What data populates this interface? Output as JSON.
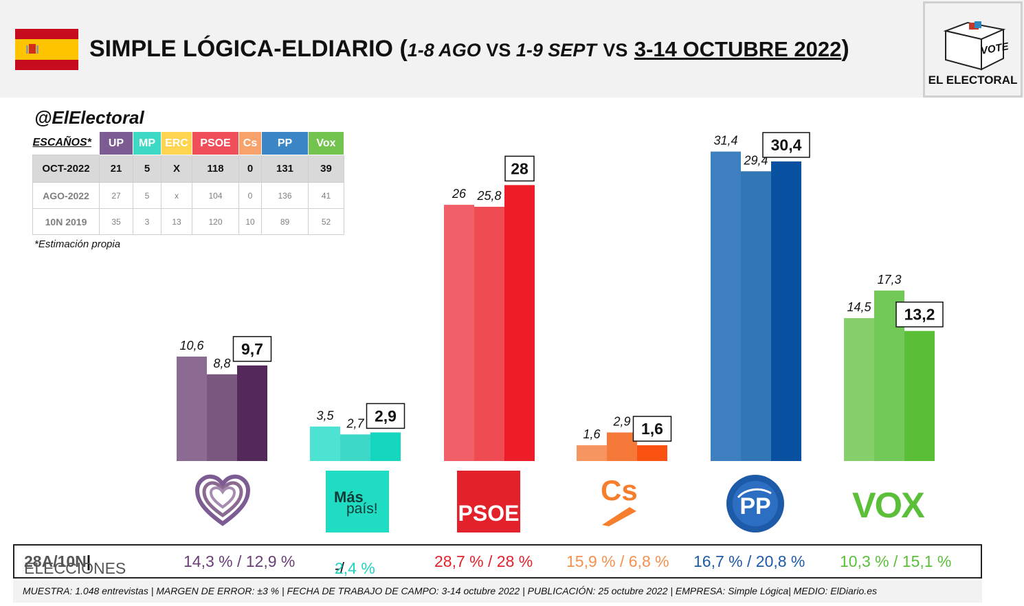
{
  "header": {
    "title_main": "SIMPLE LÓGICA-ELDIARIO",
    "title_open": "(",
    "title_sub_a": "1-8 AGO",
    "title_vs_1": "VS",
    "title_sub_b": "1-9 SEPT",
    "title_vs_2": "VS",
    "title_date": "3-14 OCTUBRE 2022",
    "title_close": ")",
    "logo_vote": "VOTE",
    "logo_name": "EL ELECTORAL"
  },
  "handle": "@ElElectoral",
  "seats_table": {
    "label": "ESCAÑOS*",
    "parties": [
      {
        "name": "UP",
        "color": "#7d5c93"
      },
      {
        "name": "MP",
        "color": "#3dd9c5"
      },
      {
        "name": "ERC",
        "color": "#ffd54f"
      },
      {
        "name": "PSOE",
        "color": "#f04f5a"
      },
      {
        "name": "Cs",
        "color": "#f7a26b"
      },
      {
        "name": "PP",
        "color": "#3c86c8"
      },
      {
        "name": "Vox",
        "color": "#72c44f"
      }
    ],
    "rows": [
      {
        "label": "OCT-2022",
        "values": [
          "21",
          "5",
          "X",
          "118",
          "0",
          "131",
          "39"
        ]
      },
      {
        "label": "AGO-2022",
        "values": [
          "27",
          "5",
          "x",
          "104",
          "0",
          "136",
          "41"
        ]
      },
      {
        "label": "10N 2019",
        "values": [
          "35",
          "3",
          "13",
          "120",
          "10",
          "89",
          "52"
        ]
      }
    ],
    "note": "*Estimación propia"
  },
  "chart_data": {
    "type": "bar",
    "categories": [
      "UP",
      "Más País",
      "PSOE",
      "Cs",
      "PP",
      "Vox"
    ],
    "series": [
      {
        "values": [
          10.6,
          3.5,
          26,
          1.6,
          31.4,
          14.5
        ],
        "labels": [
          "10,6",
          "3,5",
          "26",
          "1,6",
          "31,4",
          "14,5"
        ]
      },
      {
        "values": [
          8.8,
          2.7,
          25.8,
          2.9,
          29.4,
          17.3
        ],
        "labels": [
          "8,8",
          "2,7",
          "25,8",
          "2,9",
          "29,4",
          "17,3"
        ]
      },
      {
        "values": [
          9.7,
          2.9,
          28,
          1.6,
          30.4,
          13.2
        ],
        "labels": [
          "9,7",
          "2,9",
          "28",
          "1,6",
          "30,4",
          "13,2"
        ]
      }
    ],
    "colors": [
      [
        "#8b6b91",
        "#7a577f",
        "#55285c"
      ],
      [
        "#4de3d2",
        "#3ed8c8",
        "#15d6bf"
      ],
      [
        "#f16068",
        "#ee4b53",
        "#ed1d27"
      ],
      [
        "#f79560",
        "#f57a3a",
        "#fb5211"
      ],
      [
        "#3e7fc0",
        "#3276b6",
        "#0851a0"
      ],
      [
        "#85d06b",
        "#73c958",
        "#5abe37"
      ]
    ],
    "ylim": [
      0,
      35
    ]
  },
  "party_logos": [
    {
      "icon": "heart-icon",
      "text": ""
    },
    {
      "icon": "mas-pais-icon",
      "text_a": "Más",
      "text_b": "país!"
    },
    {
      "icon": "psoe-icon",
      "text": "PSOE"
    },
    {
      "icon": "cs-icon",
      "text": "Cs"
    },
    {
      "icon": "pp-icon",
      "text": "PP"
    },
    {
      "icon": "vox-icon",
      "text": "VOX"
    }
  ],
  "elections": {
    "label_a": "ELECCIONES ",
    "label_b": "28A/10N",
    "label_sep": "|",
    "values": [
      {
        "text": "14,3 % / 12,9 %",
        "color": "#6b3d78"
      },
      {
        "text_a": "-/",
        "text_b": "2,4 %",
        "color_a": "#111111",
        "color_b": "#1fd3c0"
      },
      {
        "text": "28,7  % / 28 %",
        "color": "#e3222b"
      },
      {
        "text": "15,9 % / 6,8 %",
        "color": "#f5914e"
      },
      {
        "text": "16,7 % / 20,8 %",
        "color": "#1d5aa8"
      },
      {
        "text": "10,3 % / 15,1 %",
        "color": "#5bbf3a"
      }
    ]
  },
  "footer": "MUESTRA: 1.048 entrevistas | MARGEN DE ERROR: ±3 % | FECHA DE TRABAJO DE CAMPO: 3-14 octubre 2022 | PUBLICACIÓN: 25 octubre 2022 | EMPRESA: Simple Lógica| MEDIO: ElDiario.es"
}
